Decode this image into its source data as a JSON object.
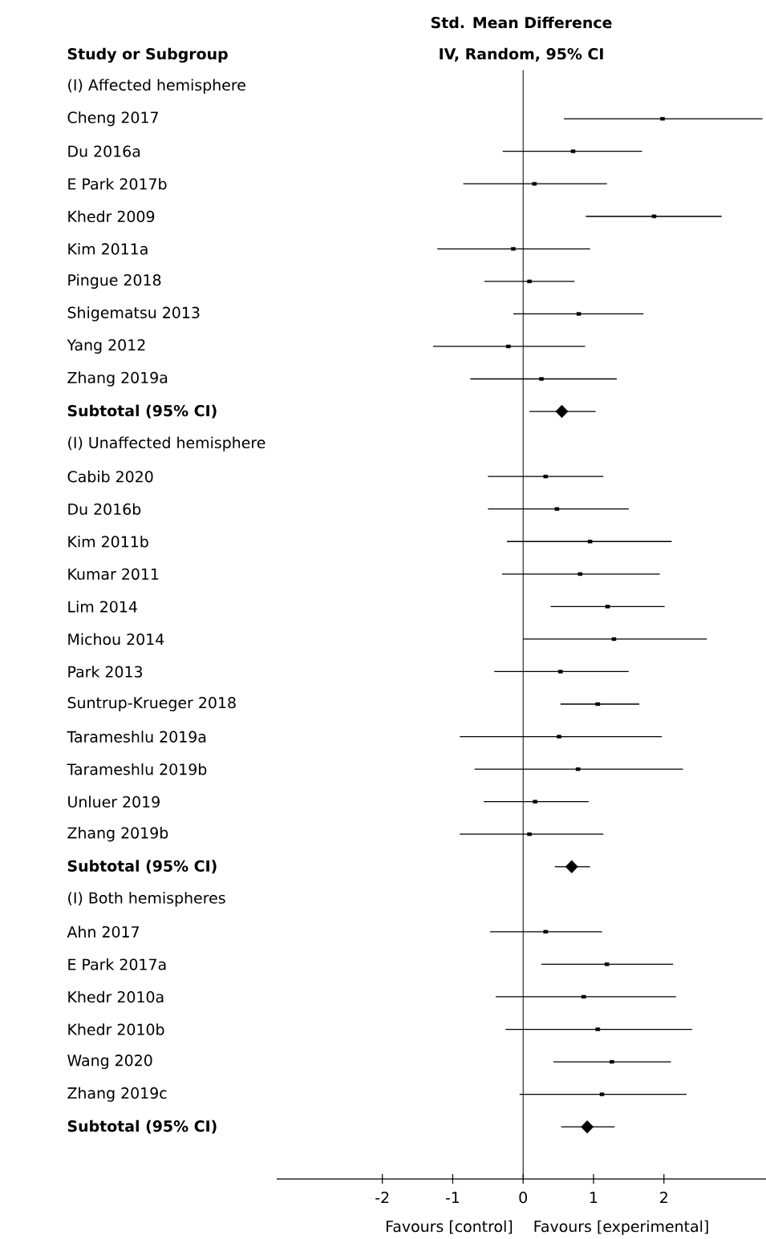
{
  "chart_data": {
    "type": "scatter",
    "title": "Std. Mean Difference",
    "subtitle": "IV, Random, 95% CI",
    "ylabel": "Study or Subgroup",
    "categories": [
      "(I)  Affected hemisphere",
      "Cheng 2017",
      "Du 2016a",
      "E Park 2017b",
      "Khedr 2009",
      "Kim 2011a",
      "Pingue 2018",
      "Shigematsu 2013",
      "Yang 2012",
      "Zhang 2019a",
      "Subtotal (95% CI)",
      "(I)  Unaffected hemisphere",
      "Cabib 2020",
      "Du 2016b",
      "Kim 2011b",
      "Kumar 2011",
      "Lim 2014",
      "Michou 2014",
      "Park 2013",
      "Suntrup-Krueger 2018",
      "Tarameshlu 2019a",
      "Tarameshlu 2019b",
      "Unluer 2019",
      "Zhang 2019b",
      "Subtotal (95% CI)",
      "(I)  Both hemispheres",
      "Ahn 2017",
      "E Park 2017a",
      "Khedr 2010a",
      "Khedr 2010b",
      "Wang 2020",
      "Zhang 2019c",
      "Subtotal (95% CI)"
    ],
    "series": [
      {
        "marker": "square",
        "color": "#000000",
        "values": [
          null,
          1.98,
          0.71,
          0.16,
          1.86,
          -0.14,
          0.09,
          0.79,
          -0.21,
          0.26,
          null,
          null,
          0.32,
          0.48,
          0.95,
          0.81,
          1.2,
          1.29,
          0.53,
          1.06,
          0.51,
          0.78,
          0.17,
          0.09,
          null,
          null,
          0.32,
          1.19,
          0.86,
          1.06,
          1.26,
          1.12,
          null
        ],
        "errors": [
          null,
          [
            0.58,
            3.4
          ],
          [
            -0.29,
            1.69
          ],
          [
            -0.85,
            1.19
          ],
          [
            0.89,
            2.82
          ],
          [
            -1.22,
            0.95
          ],
          [
            -0.55,
            0.73
          ],
          [
            -0.14,
            1.71
          ],
          [
            -1.28,
            0.88
          ],
          [
            -0.75,
            1.33
          ],
          null,
          null,
          [
            -0.5,
            1.14
          ],
          [
            -0.5,
            1.5
          ],
          [
            -0.23,
            2.11
          ],
          [
            -0.3,
            1.94
          ],
          [
            0.39,
            2.01
          ],
          [
            0.0,
            2.61
          ],
          [
            -0.41,
            1.5
          ],
          [
            0.53,
            1.65
          ],
          [
            -0.9,
            1.97
          ],
          [
            -0.69,
            2.27
          ],
          [
            -0.56,
            0.93
          ],
          [
            -0.9,
            1.14
          ],
          null,
          null,
          [
            -0.47,
            1.12
          ],
          [
            0.26,
            2.13
          ],
          [
            -0.39,
            2.17
          ],
          [
            -0.25,
            2.4
          ],
          [
            0.43,
            2.1
          ],
          [
            -0.05,
            2.32
          ],
          null
        ]
      },
      {
        "marker": "diamond",
        "color": "#000000",
        "values": [
          null,
          null,
          null,
          null,
          null,
          null,
          null,
          null,
          null,
          null,
          0.55,
          null,
          null,
          null,
          null,
          null,
          null,
          null,
          null,
          null,
          null,
          null,
          null,
          null,
          0.69,
          null,
          null,
          null,
          null,
          null,
          null,
          null,
          0.91
        ],
        "errors": [
          null,
          null,
          null,
          null,
          null,
          null,
          null,
          null,
          null,
          null,
          [
            0.09,
            1.03
          ],
          null,
          null,
          null,
          null,
          null,
          null,
          null,
          null,
          null,
          null,
          null,
          null,
          null,
          [
            0.45,
            0.95
          ],
          null,
          null,
          null,
          null,
          null,
          null,
          null,
          [
            0.54,
            1.3
          ]
        ]
      }
    ],
    "orientation": "horizontal",
    "xlim": [
      -3.5,
      3.45
    ],
    "xticks": [
      -2,
      -1,
      0,
      1,
      2
    ],
    "ref_lines": [
      {
        "axis": "x",
        "value": 0,
        "color": "#000000"
      }
    ],
    "annotations": [
      "Favours [control]",
      "Favours [experimental]"
    ]
  }
}
